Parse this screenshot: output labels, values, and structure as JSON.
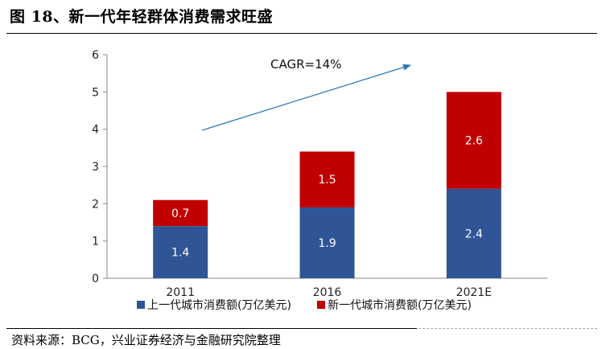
{
  "figure": {
    "title": "图 18、新一代年轻群体消费需求旺盛",
    "source": "资料来源：BCG，兴业证券经济与金融研究院整理"
  },
  "chart_data": {
    "type": "bar",
    "stacked": true,
    "categories": [
      "2011",
      "2016",
      "2021E"
    ],
    "series": [
      {
        "name": "上一代城市消费额(万亿美元)",
        "values": [
          1.4,
          1.9,
          2.4
        ],
        "color": "#2F5597"
      },
      {
        "name": "新一代城市消费额(万亿美元)",
        "values": [
          0.7,
          1.5,
          2.6
        ],
        "color": "#C00000"
      }
    ],
    "ylim": [
      0,
      6
    ],
    "yticks": [
      0,
      1,
      2,
      3,
      4,
      5,
      6
    ],
    "grid": false,
    "legend_position": "bottom",
    "annotation": {
      "text": "CAGR=14%",
      "type": "arrow",
      "color": "#2E75B6"
    },
    "data_label_color": "#ffffff",
    "xlabel": "",
    "ylabel": ""
  }
}
